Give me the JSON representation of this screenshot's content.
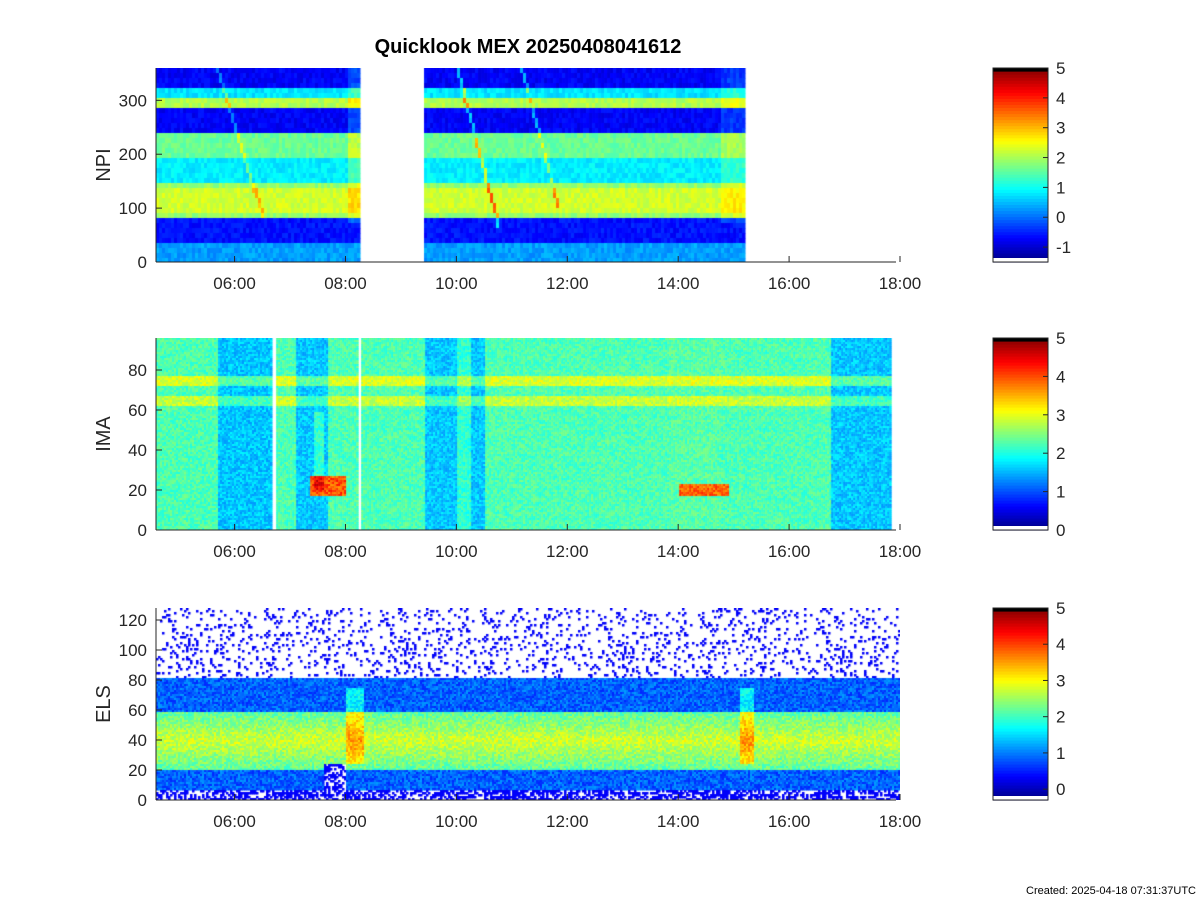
{
  "title": "Quicklook MEX 20250408041612",
  "footer": "Created: 2025-04-18 07:31:37UTC",
  "colors": {
    "axis": "#262626",
    "gap": "#ffffff",
    "colormap": "jet"
  },
  "chart_data": [
    {
      "type": "heatmap",
      "ylabel": "NPI",
      "xlim": [
        "04:35",
        "18:00"
      ],
      "xticks": [
        "06:00",
        "08:00",
        "10:00",
        "12:00",
        "14:00",
        "16:00",
        "18:00"
      ],
      "ylim": [
        0,
        360
      ],
      "yticks": [
        0,
        100,
        200,
        300
      ],
      "colorbar": {
        "range": [
          -1.5,
          5
        ],
        "ticks": [
          -1,
          0,
          1,
          2,
          3,
          4,
          5
        ]
      },
      "data_intervals": [
        [
          "04:35",
          "08:15"
        ],
        [
          "09:25",
          "15:12"
        ]
      ]
    },
    {
      "type": "heatmap",
      "ylabel": "IMA",
      "xlim": [
        "04:35",
        "18:00"
      ],
      "xticks": [
        "06:00",
        "08:00",
        "10:00",
        "12:00",
        "14:00",
        "16:00",
        "18:00"
      ],
      "ylim": [
        0,
        96
      ],
      "yticks": [
        0,
        20,
        40,
        60,
        80
      ],
      "colorbar": {
        "range": [
          0,
          5
        ],
        "ticks": [
          0,
          1,
          2,
          3,
          4,
          5
        ]
      },
      "data_intervals": [
        [
          "04:35",
          "06:40"
        ],
        [
          "06:45",
          "08:13"
        ],
        [
          "08:17",
          "17:50"
        ]
      ]
    },
    {
      "type": "heatmap",
      "ylabel": "ELS",
      "xlim": [
        "04:35",
        "18:00"
      ],
      "xticks": [
        "06:00",
        "08:00",
        "10:00",
        "12:00",
        "14:00",
        "16:00",
        "18:00"
      ],
      "ylim": [
        0,
        128
      ],
      "yticks": [
        0,
        20,
        40,
        60,
        80,
        100,
        120
      ],
      "colorbar": {
        "range": [
          -0.3,
          5
        ],
        "ticks": [
          0,
          1,
          2,
          3,
          4,
          5
        ]
      },
      "data_intervals": [
        [
          "04:35",
          "18:05"
        ]
      ]
    }
  ]
}
